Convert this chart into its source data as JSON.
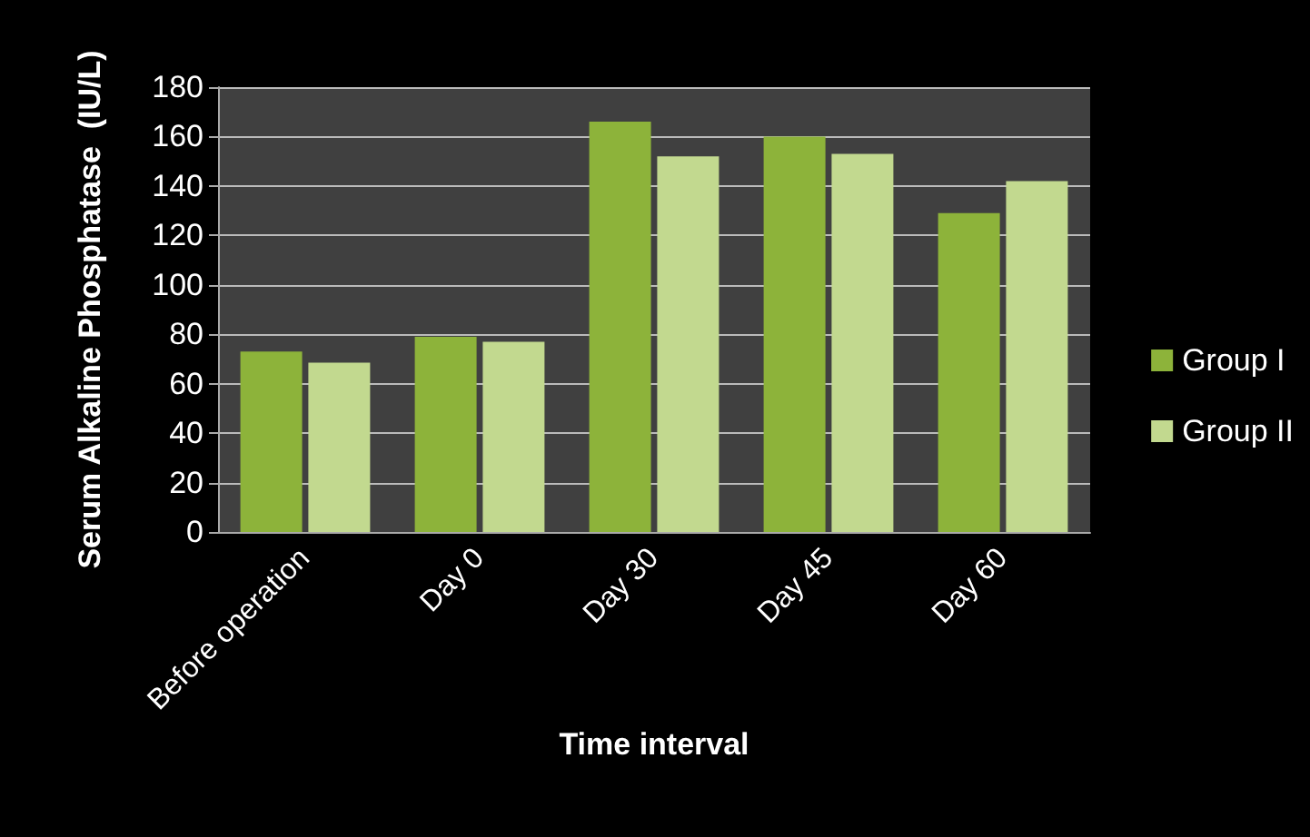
{
  "chart_data": {
    "type": "bar",
    "xlabel": "Time interval",
    "ylabel": "Serum Alkaline Phosphatase  (IU/L)",
    "categories": [
      "Before operation",
      "Day 0",
      "Day 30",
      "Day 45",
      "Day 60"
    ],
    "series": [
      {
        "name": "Group I",
        "color": "#8db33a",
        "values": [
          73,
          79,
          166,
          160,
          129
        ]
      },
      {
        "name": "Group II",
        "color": "#c2d98f",
        "values": [
          68.5,
          77,
          152,
          153,
          142
        ]
      }
    ],
    "ylim": [
      0,
      180
    ],
    "yticks": [
      0,
      20,
      40,
      60,
      80,
      100,
      120,
      140,
      160,
      180
    ],
    "grid": "y",
    "legend": "right"
  }
}
